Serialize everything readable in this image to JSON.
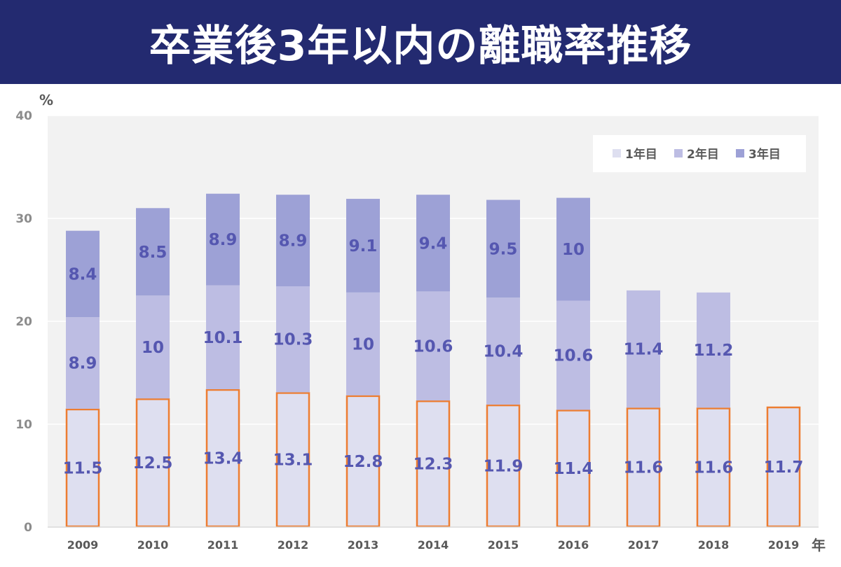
{
  "header": {
    "title": "卒業後3年以内の離職率推移"
  },
  "chart_data": {
    "type": "bar",
    "stacked": true,
    "title": "卒業後3年以内の離職率推移",
    "y_unit": "%",
    "x_unit": "年",
    "ylim": [
      0,
      40
    ],
    "yticks": [
      0,
      10,
      20,
      30,
      40
    ],
    "grid": true,
    "legend_position": "top-right",
    "categories": [
      "2009",
      "2010",
      "2011",
      "2012",
      "2013",
      "2014",
      "2015",
      "2016",
      "2017",
      "2018",
      "2019"
    ],
    "series": [
      {
        "name": "1年目",
        "color": "#dedff0",
        "values": [
          11.5,
          12.5,
          13.4,
          13.1,
          12.8,
          12.3,
          11.9,
          11.4,
          11.6,
          11.6,
          11.7
        ]
      },
      {
        "name": "2年目",
        "color": "#bdbde3",
        "values": [
          8.9,
          10,
          10.1,
          10.3,
          10,
          10.6,
          10.4,
          10.6,
          11.4,
          11.2,
          null
        ]
      },
      {
        "name": "3年目",
        "color": "#9da1d6",
        "values": [
          8.4,
          8.5,
          8.9,
          8.9,
          9.1,
          9.4,
          9.5,
          10,
          null,
          null,
          null
        ]
      }
    ],
    "highlight_series": "1年目",
    "highlight_color": "#ed7d31",
    "label_color": "#5557b0"
  }
}
